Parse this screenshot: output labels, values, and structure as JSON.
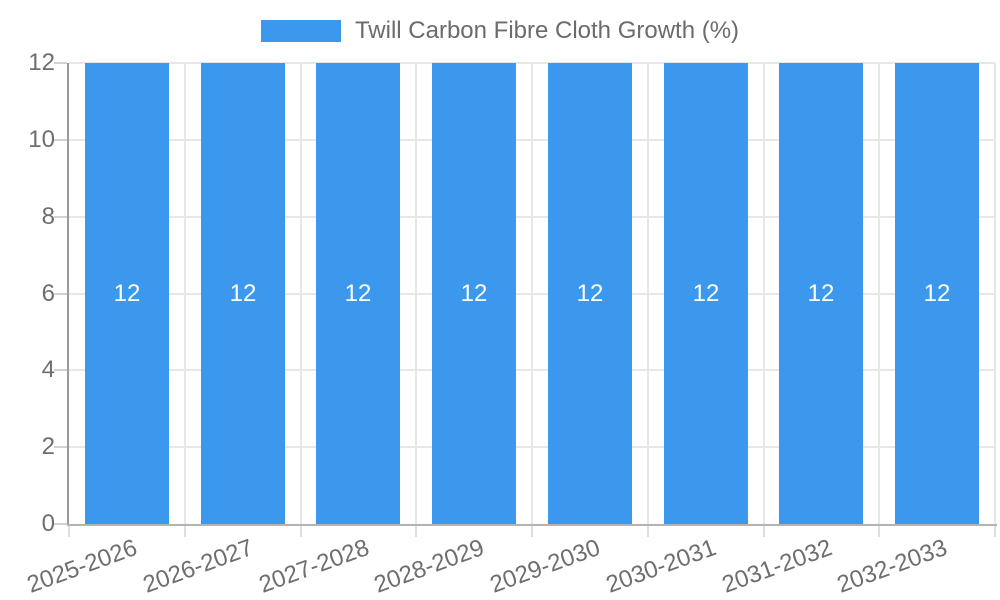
{
  "legend": {
    "label": "Twill Carbon Fibre Cloth Growth (%)",
    "swatch_color": "#3b98ec"
  },
  "chart_data": {
    "type": "bar",
    "title": "Twill Carbon Fibre Cloth Growth (%)",
    "categories": [
      "2025-2026",
      "2026-2027",
      "2027-2028",
      "2028-2029",
      "2029-2030",
      "2030-2031",
      "2031-2032",
      "2032-2033"
    ],
    "series": [
      {
        "name": "Twill Carbon Fibre Cloth Growth (%)",
        "values": [
          12,
          12,
          12,
          12,
          12,
          12,
          12,
          12
        ]
      }
    ],
    "bar_labels": [
      "12",
      "12",
      "12",
      "12",
      "12",
      "12",
      "12",
      "12"
    ],
    "xlabel": "",
    "ylabel": "",
    "ylim": [
      0,
      12
    ],
    "yticks": [
      0,
      2,
      4,
      6,
      8,
      10,
      12
    ],
    "grid": true,
    "legend_position": "top",
    "colors": {
      "bar": "#3b98ec",
      "bar_label_text": "#ffffff",
      "axis_text": "#6e6e6e",
      "legend_text": "#6b6b6b",
      "gridline": "#e7e7e7",
      "background": "#ffffff"
    }
  }
}
